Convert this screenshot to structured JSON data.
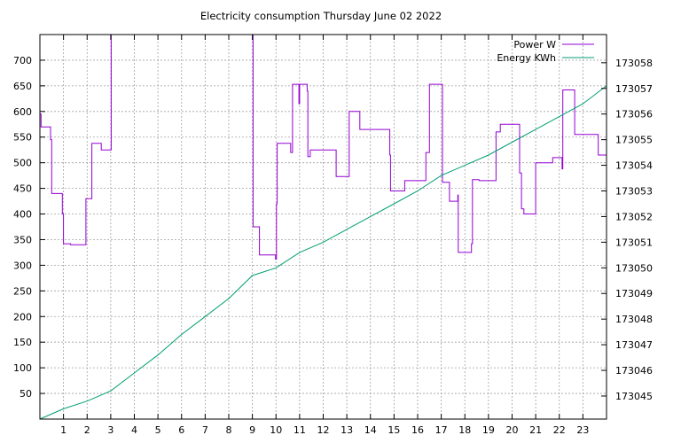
{
  "chart_data": {
    "type": "line",
    "title": "Electricity consumption Thursday June 02 2022",
    "xlabel": "",
    "ylabel": "",
    "xlim": [
      0,
      24
    ],
    "ylim": [
      0,
      750
    ],
    "y2lim": [
      173044.1,
      173059.1
    ],
    "grid": true,
    "legend_position": "top-right",
    "x_ticks": [
      1,
      2,
      3,
      4,
      5,
      6,
      7,
      8,
      9,
      10,
      11,
      12,
      13,
      14,
      15,
      16,
      17,
      18,
      19,
      20,
      21,
      22,
      23
    ],
    "y_ticks": [
      50,
      100,
      150,
      200,
      250,
      300,
      350,
      400,
      450,
      500,
      550,
      600,
      650,
      700
    ],
    "y2_ticks": [
      173045,
      173046,
      173047,
      173048,
      173049,
      173050,
      173051,
      173052,
      173053,
      173054,
      173055,
      173056,
      173057,
      173058
    ],
    "series": [
      {
        "name": "Power W",
        "axis": "left",
        "color": "#9400d3",
        "step": true,
        "points": [
          [
            0.0,
            595
          ],
          [
            0.05,
            570
          ],
          [
            0.45,
            545
          ],
          [
            0.5,
            440
          ],
          [
            0.95,
            400
          ],
          [
            1.0,
            342
          ],
          [
            1.3,
            340
          ],
          [
            1.9,
            340
          ],
          [
            1.95,
            430
          ],
          [
            2.15,
            430
          ],
          [
            2.2,
            538
          ],
          [
            2.55,
            538
          ],
          [
            2.6,
            525
          ],
          [
            3.0,
            525
          ],
          [
            3.02,
            750
          ],
          [
            9.0,
            750
          ],
          [
            9.03,
            375
          ],
          [
            9.3,
            320
          ],
          [
            9.95,
            320
          ],
          [
            9.98,
            312
          ],
          [
            10.02,
            420
          ],
          [
            10.05,
            538
          ],
          [
            10.6,
            538
          ],
          [
            10.62,
            520
          ],
          [
            10.7,
            653
          ],
          [
            10.95,
            653
          ],
          [
            10.97,
            615
          ],
          [
            11.0,
            653
          ],
          [
            11.3,
            653
          ],
          [
            11.32,
            640
          ],
          [
            11.35,
            512
          ],
          [
            11.45,
            525
          ],
          [
            12.5,
            525
          ],
          [
            12.55,
            473
          ],
          [
            13.05,
            473
          ],
          [
            13.1,
            600
          ],
          [
            13.5,
            600
          ],
          [
            13.55,
            565
          ],
          [
            14.8,
            565
          ],
          [
            14.82,
            515
          ],
          [
            14.85,
            445
          ],
          [
            15.4,
            445
          ],
          [
            15.45,
            465
          ],
          [
            16.3,
            465
          ],
          [
            16.35,
            520
          ],
          [
            16.5,
            653
          ],
          [
            17.0,
            653
          ],
          [
            17.05,
            462
          ],
          [
            17.3,
            462
          ],
          [
            17.35,
            425
          ],
          [
            17.65,
            425
          ],
          [
            17.7,
            437
          ],
          [
            17.72,
            325
          ],
          [
            18.25,
            325
          ],
          [
            18.28,
            342
          ],
          [
            18.32,
            467
          ],
          [
            18.6,
            465
          ],
          [
            19.3,
            465
          ],
          [
            19.32,
            560
          ],
          [
            19.5,
            575
          ],
          [
            20.3,
            575
          ],
          [
            20.32,
            480
          ],
          [
            20.4,
            410
          ],
          [
            20.5,
            400
          ],
          [
            20.95,
            400
          ],
          [
            21.0,
            500
          ],
          [
            21.7,
            500
          ],
          [
            21.72,
            510
          ],
          [
            22.1,
            510
          ],
          [
            22.12,
            488
          ],
          [
            22.15,
            642
          ],
          [
            22.6,
            642
          ],
          [
            22.65,
            555
          ],
          [
            23.6,
            555
          ],
          [
            23.65,
            515
          ],
          [
            24.0,
            515
          ]
        ]
      },
      {
        "name": "Energy KWh",
        "axis": "right",
        "color": "#009e73",
        "step": false,
        "points": [
          [
            0.0,
            173044.1
          ],
          [
            1.0,
            173044.5
          ],
          [
            2.0,
            173044.8
          ],
          [
            3.0,
            173045.2
          ],
          [
            4.0,
            173045.9
          ],
          [
            5.0,
            173046.6
          ],
          [
            6.0,
            173047.4
          ],
          [
            7.0,
            173048.1
          ],
          [
            8.0,
            173048.8
          ],
          [
            9.0,
            173049.7
          ],
          [
            10.0,
            173050.0
          ],
          [
            11.0,
            173050.6
          ],
          [
            12.0,
            173051.0
          ],
          [
            13.0,
            173051.5
          ],
          [
            14.0,
            173052.0
          ],
          [
            15.0,
            173052.5
          ],
          [
            16.0,
            173053.0
          ],
          [
            17.0,
            173053.6
          ],
          [
            18.0,
            173054.0
          ],
          [
            19.0,
            173054.4
          ],
          [
            20.0,
            173054.9
          ],
          [
            21.0,
            173055.4
          ],
          [
            22.0,
            173055.9
          ],
          [
            23.0,
            173056.4
          ],
          [
            24.0,
            173057.1
          ]
        ]
      }
    ]
  }
}
